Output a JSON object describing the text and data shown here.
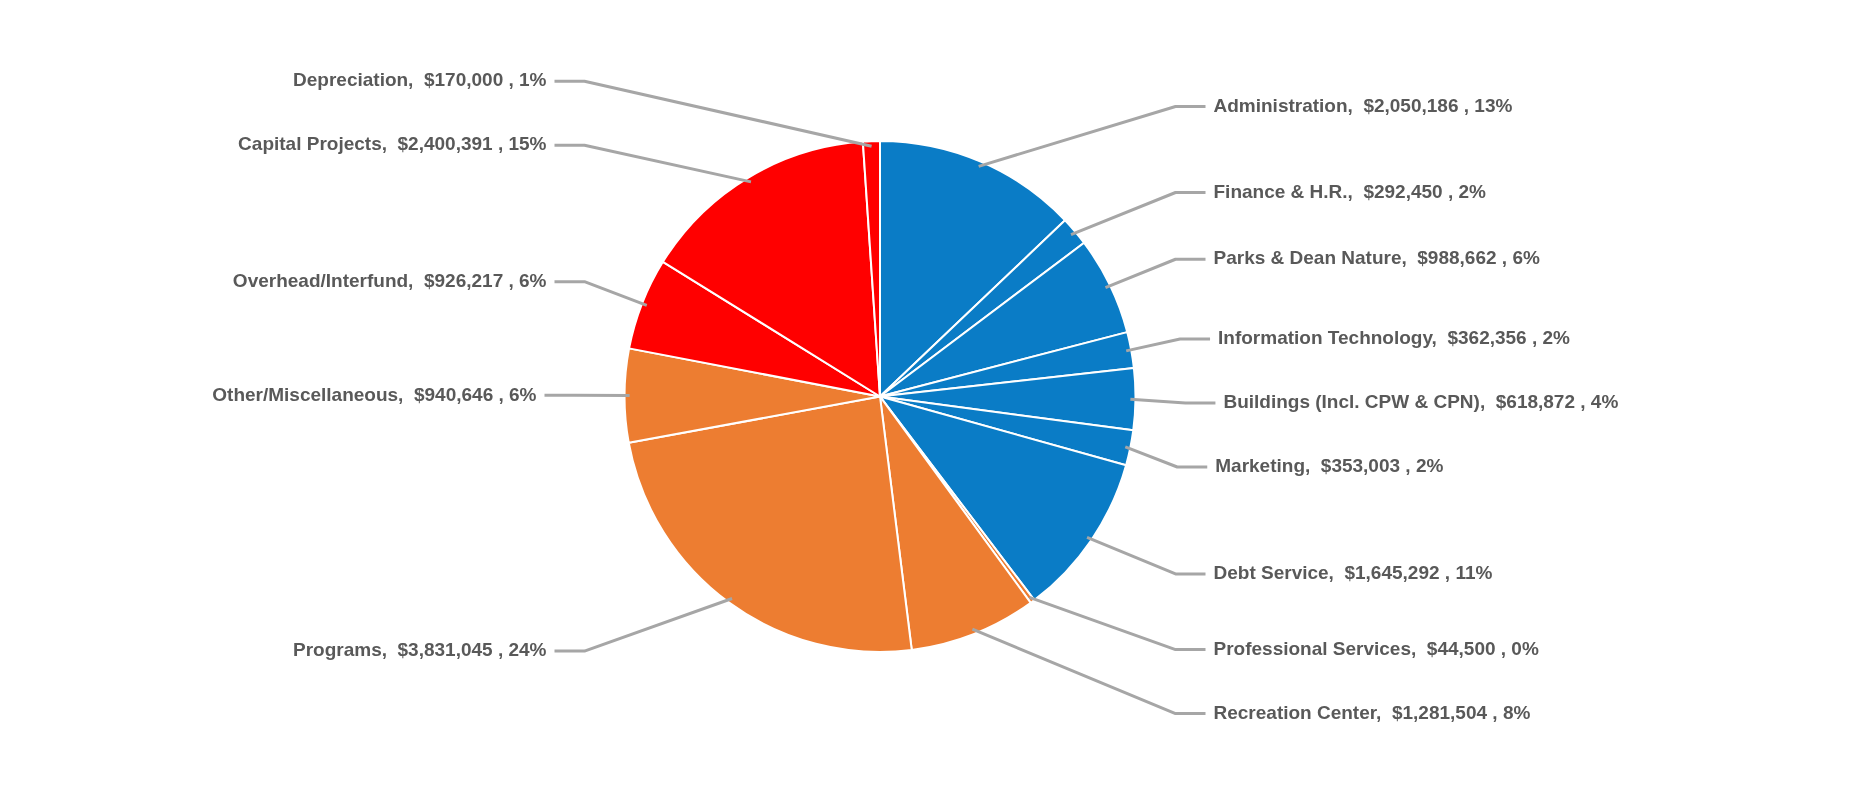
{
  "chart_data": {
    "type": "pie",
    "categories": [
      "Administration",
      "Finance & H.R.",
      "Parks & Dean Nature",
      "Information Technology",
      "Buildings (Incl. CPW & CPN)",
      "Marketing",
      "Debt Service",
      "Professional Services",
      "Recreation Center",
      "Programs",
      "Other/Miscellaneous",
      "Overhead/Interfund",
      "Capital Projects",
      "Depreciation"
    ],
    "values": [
      2050186,
      292450,
      988662,
      362356,
      618872,
      353003,
      1645292,
      44500,
      1281504,
      3831045,
      940646,
      926217,
      2400391,
      170000
    ],
    "value_labels": [
      "$2,050,186 , 13%",
      "$292,450 , 2%",
      "$988,662 , 6%",
      "$362,356 , 2%",
      "$618,872 , 4%",
      "$353,003 , 2%",
      "$1,645,292 , 11%",
      "$44,500 , 0%",
      "$1,281,504 , 8%",
      "$3,831,045 , 24%",
      "$940,646 , 6%",
      "$926,217 , 6%",
      "$2,400,391 , 15%",
      "$170,000 , 1%"
    ],
    "colors": [
      "#0a7cc6",
      "#0a7cc6",
      "#0a7cc6",
      "#0a7cc6",
      "#0a7cc6",
      "#0a7cc6",
      "#0a7cc6",
      "#ed7d31",
      "#ed7d31",
      "#ed7d31",
      "#ed7d31",
      "#ff0000",
      "#ff0000",
      "#ff0000"
    ],
    "legend": false
  }
}
